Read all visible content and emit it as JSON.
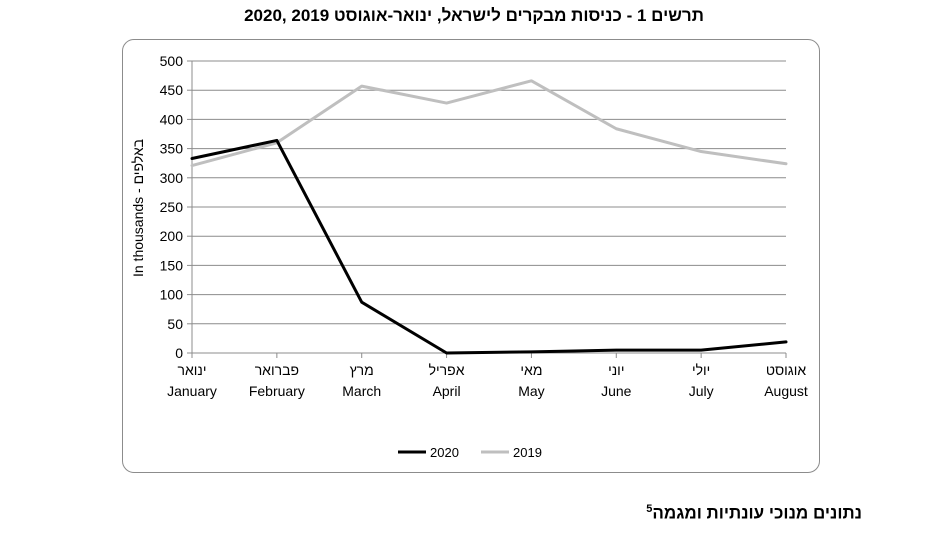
{
  "title": "תרשים 1 - כניסות מבקרים לישראל, ינואר-אוגוסט 2019 ,2020",
  "footer": {
    "text": "נתונים מנוכי עונתיות ומגמה",
    "superscript": "5"
  },
  "chart_data": {
    "type": "line",
    "ylabel": "In thousands - באלפים",
    "ylim": [
      0,
      500
    ],
    "yticks": [
      0,
      50,
      100,
      150,
      200,
      250,
      300,
      350,
      400,
      450,
      500
    ],
    "grid": true,
    "legend_position": "bottom",
    "categories": [
      {
        "he": "ינואר",
        "en": "January"
      },
      {
        "he": "פברואר",
        "en": "February"
      },
      {
        "he": "מרץ",
        "en": "March"
      },
      {
        "he": "אפריל",
        "en": "April"
      },
      {
        "he": "מאי",
        "en": "May"
      },
      {
        "he": "יוני",
        "en": "June"
      },
      {
        "he": "יולי",
        "en": "July"
      },
      {
        "he": "אוגוסט",
        "en": "August"
      }
    ],
    "series": [
      {
        "name": "2020",
        "color": "#000000",
        "values": [
          333,
          364,
          87,
          0,
          2,
          5,
          5,
          19
        ]
      },
      {
        "name": "2019",
        "color": "#bfbfbf",
        "values": [
          321,
          360,
          457,
          428,
          466,
          384,
          345,
          324
        ]
      }
    ]
  }
}
